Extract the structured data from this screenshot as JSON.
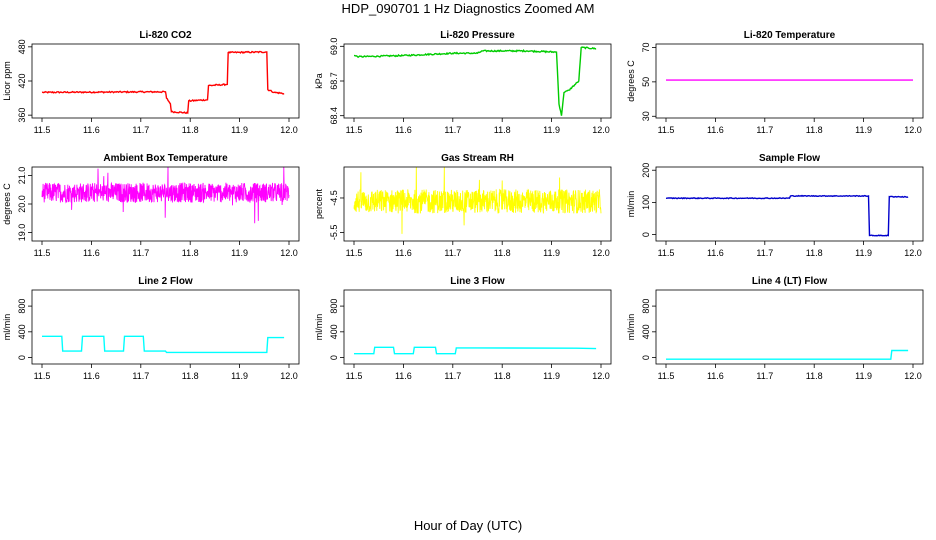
{
  "page": {
    "title": "HDP_090701  1 Hz Diagnostics Zoomed AM",
    "xlabel": "Hour of Day (UTC)"
  },
  "chart_data": [
    {
      "type": "line",
      "title": "Li-820 CO2",
      "ylabel": "Licor ppm",
      "color": "#ff0000",
      "xlim": [
        11.5,
        12.0
      ],
      "ylim": [
        355,
        485
      ],
      "yticks": [
        "360",
        "420",
        "480"
      ],
      "ytick_values": [
        360,
        420,
        480
      ],
      "xticks": [
        "11.5",
        "11.6",
        "11.7",
        "11.8",
        "11.9",
        "12.0"
      ],
      "noise": 1.2,
      "series": [
        {
          "x": [
            11.5,
            11.75,
            11.752,
            11.76,
            11.762,
            11.795,
            11.797,
            11.835,
            11.837,
            11.875,
            11.877,
            11.955,
            11.957,
            11.97,
            11.99
          ],
          "y": [
            400,
            401,
            390,
            380,
            366,
            364,
            385,
            387,
            412,
            414,
            470,
            471,
            405,
            400,
            398
          ]
        }
      ]
    },
    {
      "type": "line",
      "title": "Li-820 Pressure",
      "ylabel": "kPa",
      "color": "#00cc00",
      "xlim": [
        11.5,
        12.0
      ],
      "ylim": [
        68.38,
        69.02
      ],
      "yticks": [
        "68.4",
        "68.7",
        "69.0"
      ],
      "ytick_values": [
        68.4,
        68.7,
        69.0
      ],
      "xticks": [
        "11.5",
        "11.6",
        "11.7",
        "11.8",
        "11.9",
        "12.0"
      ],
      "noise": 0.006,
      "series": [
        {
          "x": [
            11.5,
            11.51,
            11.6,
            11.7,
            11.75,
            11.76,
            11.85,
            11.91,
            11.915,
            11.92,
            11.925,
            11.935,
            11.955,
            11.96,
            11.99
          ],
          "y": [
            68.92,
            68.91,
            68.92,
            68.94,
            68.94,
            68.96,
            68.96,
            68.95,
            68.5,
            68.4,
            68.6,
            68.62,
            68.7,
            68.99,
            68.98
          ]
        }
      ]
    },
    {
      "type": "line",
      "title": "Li-820 Temperature",
      "ylabel": "degrees C",
      "color": "#ff00ff",
      "xlim": [
        11.5,
        12.0
      ],
      "ylim": [
        29,
        72
      ],
      "yticks": [
        "30",
        "50",
        "70"
      ],
      "ytick_values": [
        30,
        50,
        70
      ],
      "xticks": [
        "11.5",
        "11.6",
        "11.7",
        "11.8",
        "11.9",
        "12.0"
      ],
      "noise": 0,
      "series": [
        {
          "x": [
            11.5,
            12.0
          ],
          "y": [
            51,
            51
          ]
        }
      ]
    },
    {
      "type": "line",
      "title": "Ambient Box Temperature",
      "ylabel": "degrees C",
      "color": "#ff00ff",
      "xlim": [
        11.5,
        12.0
      ],
      "ylim": [
        18.7,
        21.3
      ],
      "yticks": [
        "19.0",
        "20.0",
        "21.0"
      ],
      "ytick_values": [
        19.0,
        20.0,
        21.0
      ],
      "xticks": [
        "11.5",
        "11.6",
        "11.7",
        "11.8",
        "11.9",
        "12.0"
      ],
      "noise": 0.35,
      "dense": true,
      "series": [
        {
          "x": [
            11.5,
            12.0
          ],
          "y": [
            20.4,
            20.4
          ]
        }
      ]
    },
    {
      "type": "line",
      "title": "Gas Stream RH",
      "ylabel": "percent",
      "color": "#ffff00",
      "xlim": [
        11.5,
        12.0
      ],
      "ylim": [
        -5.75,
        -3.6
      ],
      "yticks": [
        "-5.5",
        "-4.5"
      ],
      "ytick_values": [
        -5.5,
        -4.5
      ],
      "xticks": [
        "11.5",
        "11.6",
        "11.7",
        "11.8",
        "11.9",
        "12.0"
      ],
      "noise": 0.35,
      "dense": true,
      "series": [
        {
          "x": [
            11.5,
            12.0
          ],
          "y": [
            -4.6,
            -4.6
          ]
        }
      ]
    },
    {
      "type": "line",
      "title": "Sample Flow",
      "ylabel": "ml/min",
      "color": "#0000cc",
      "xlim": [
        11.5,
        12.0
      ],
      "ylim": [
        -20,
        210
      ],
      "yticks": [
        "0",
        "100",
        "200"
      ],
      "ytick_values": [
        0,
        100,
        200
      ],
      "xticks": [
        "11.5",
        "11.6",
        "11.7",
        "11.8",
        "11.9",
        "12.0"
      ],
      "noise": 1.2,
      "series": [
        {
          "x": [
            11.5,
            11.75,
            11.752,
            11.91,
            11.912,
            11.95,
            11.952,
            11.99
          ],
          "y": [
            113,
            113,
            120,
            120,
            -3,
            -3,
            118,
            117
          ]
        }
      ]
    },
    {
      "type": "line",
      "title": "Line 2 Flow",
      "ylabel": "ml/min",
      "color": "#00ffff",
      "xlim": [
        11.5,
        12.0
      ],
      "ylim": [
        -100,
        1050
      ],
      "yticks": [
        "0",
        "400",
        "800"
      ],
      "ytick_values": [
        0,
        400,
        800
      ],
      "xticks": [
        "11.5",
        "11.6",
        "11.7",
        "11.8",
        "11.9",
        "12.0"
      ],
      "noise": 0,
      "series": [
        {
          "x": [
            11.5,
            11.54,
            11.542,
            11.58,
            11.582,
            11.625,
            11.627,
            11.665,
            11.667,
            11.705,
            11.707,
            11.75,
            11.752,
            11.955,
            11.957,
            11.99
          ],
          "y": [
            330,
            330,
            100,
            100,
            330,
            330,
            100,
            100,
            330,
            330,
            100,
            100,
            80,
            80,
            310,
            310
          ]
        }
      ]
    },
    {
      "type": "line",
      "title": "Line 3 Flow",
      "ylabel": "ml/min",
      "color": "#00ffff",
      "xlim": [
        11.5,
        12.0
      ],
      "ylim": [
        -100,
        1050
      ],
      "yticks": [
        "0",
        "400",
        "800"
      ],
      "ytick_values": [
        0,
        400,
        800
      ],
      "xticks": [
        "11.5",
        "11.6",
        "11.7",
        "11.8",
        "11.9",
        "12.0"
      ],
      "noise": 0,
      "series": [
        {
          "x": [
            11.5,
            11.54,
            11.542,
            11.58,
            11.582,
            11.62,
            11.622,
            11.665,
            11.667,
            11.705,
            11.707,
            11.75,
            11.95,
            11.99
          ],
          "y": [
            60,
            60,
            160,
            160,
            60,
            60,
            160,
            160,
            60,
            60,
            150,
            150,
            145,
            140
          ]
        }
      ]
    },
    {
      "type": "line",
      "title": "Line 4 (LT) Flow",
      "ylabel": "ml/min",
      "color": "#00ffff",
      "xlim": [
        11.5,
        12.0
      ],
      "ylim": [
        -100,
        1050
      ],
      "yticks": [
        "0",
        "400",
        "800"
      ],
      "ytick_values": [
        0,
        400,
        800
      ],
      "xticks": [
        "11.5",
        "11.6",
        "11.7",
        "11.8",
        "11.9",
        "12.0"
      ],
      "noise": 0,
      "series": [
        {
          "x": [
            11.5,
            11.955,
            11.957,
            11.99
          ],
          "y": [
            -25,
            -25,
            110,
            110
          ]
        }
      ]
    }
  ]
}
